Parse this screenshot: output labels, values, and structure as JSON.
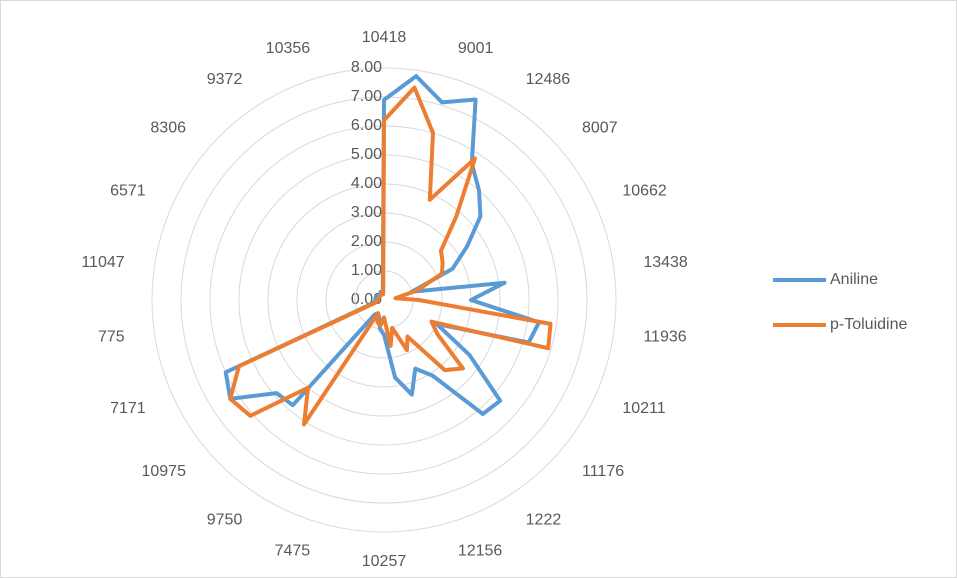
{
  "chart_data": {
    "type": "radar",
    "categories": [
      "10418",
      null,
      "9001",
      null,
      "12486",
      null,
      "8007",
      null,
      "10662",
      null,
      "13438",
      null,
      "11936",
      null,
      "10211",
      null,
      "11176",
      null,
      "1222",
      null,
      "12156",
      null,
      "10257",
      null,
      "7475",
      null,
      "9750",
      null,
      "10975",
      null,
      "7171",
      null,
      "775",
      null,
      "11047",
      null,
      "6571",
      null,
      "8306",
      null,
      "9372",
      null,
      "10356",
      null
    ],
    "series": [
      {
        "name": "Aniline",
        "color": "#5b9bd5",
        "values": [
          6.9,
          7.8,
          7.1,
          7.6,
          5.6,
          5.0,
          4.4,
          3.4,
          2.6,
          1.0,
          4.2,
          3.0,
          5.4,
          5.2,
          2.0,
          3.5,
          5.3,
          5.2,
          3.1,
          2.6,
          3.4,
          2.7,
          1.2,
          1.0,
          0.6,
          0.5,
          0.6,
          4.8,
          4.9,
          6.3,
          6.0,
          0.4,
          0.3,
          0.3,
          0.3,
          0.3,
          0.3,
          0.2,
          0.2,
          0.2,
          0.2,
          0.3,
          0.3,
          0.3
        ]
      },
      {
        "name": "p-Toluidine",
        "color": "#ed7d31",
        "values": [
          6.2,
          7.4,
          6.0,
          3.8,
          5.8,
          3.8,
          2.6,
          2.4,
          2.2,
          1.2,
          0.4,
          1.2,
          5.8,
          5.9,
          1.8,
          2.2,
          3.6,
          3.2,
          1.5,
          1.9,
          1.0,
          1.6,
          0.6,
          0.9,
          0.8,
          0.5,
          5.1,
          4.0,
          6.1,
          6.3,
          5.5,
          0.3,
          0.2,
          0.2,
          0.2,
          0.2,
          0.2,
          0.2,
          0.2,
          0.2,
          0.2,
          0.2,
          0.2,
          0.2
        ]
      }
    ],
    "rlim": [
      0,
      8
    ],
    "rticks": [
      {
        "value": 0,
        "label": "0.00"
      },
      {
        "value": 1,
        "label": "1.00"
      },
      {
        "value": 2,
        "label": "2.00"
      },
      {
        "value": 3,
        "label": "3.00"
      },
      {
        "value": 4,
        "label": "4.00"
      },
      {
        "value": 5,
        "label": "5.00"
      },
      {
        "value": 6,
        "label": "6.00"
      },
      {
        "value": 7,
        "label": "7.00"
      },
      {
        "value": 8,
        "label": "8.00"
      }
    ],
    "grid": true,
    "legend": "right"
  }
}
